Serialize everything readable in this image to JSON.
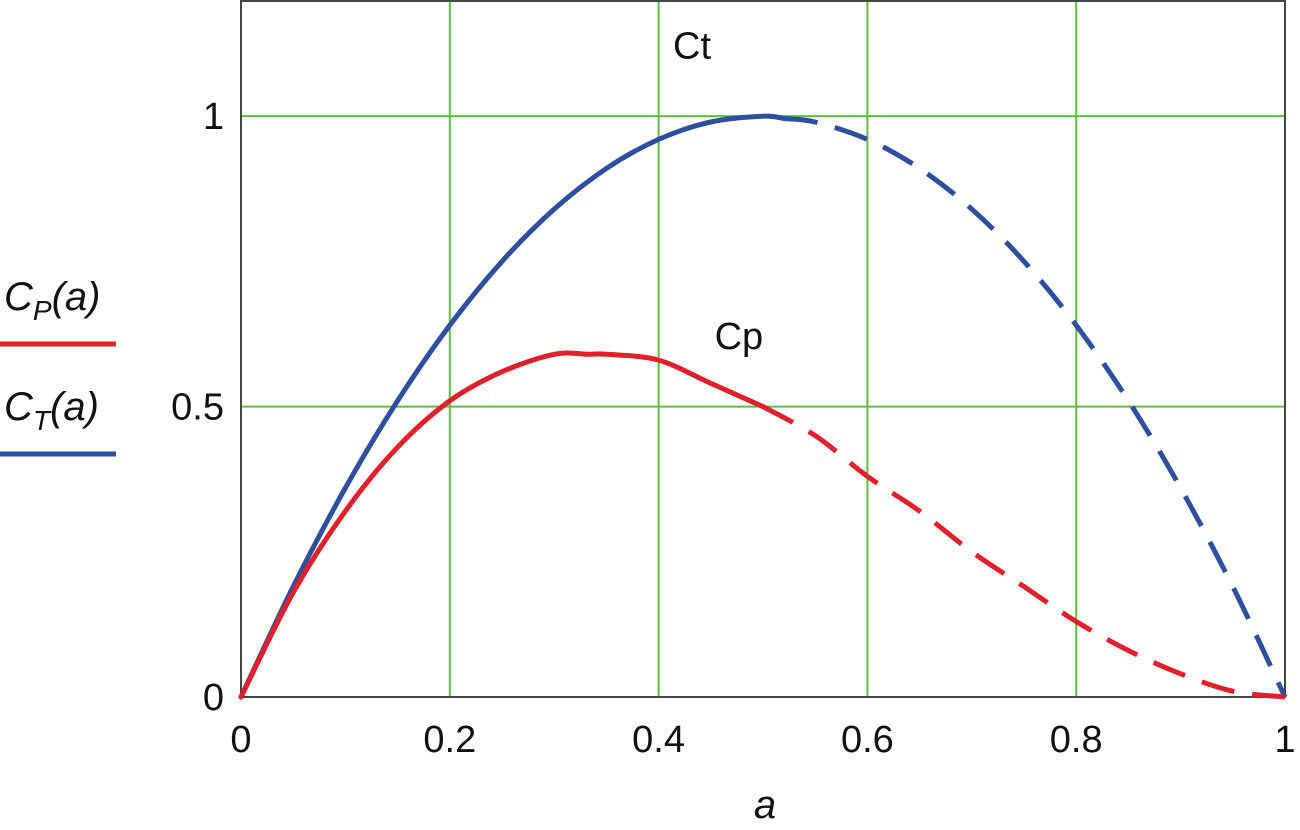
{
  "chart_data": {
    "type": "line",
    "title": "",
    "xlabel": "a",
    "ylabel": "",
    "xlim": [
      0,
      1
    ],
    "ylim": [
      0,
      1.2
    ],
    "grid": true,
    "grid_color": "#5cbf3a",
    "x_ticks": [
      {
        "value": 0,
        "label": "0"
      },
      {
        "value": 0.2,
        "label": "0.2"
      },
      {
        "value": 0.4,
        "label": "0.4"
      },
      {
        "value": 0.6,
        "label": "0.6"
      },
      {
        "value": 0.8,
        "label": "0.8"
      },
      {
        "value": 1,
        "label": "1"
      }
    ],
    "y_ticks": [
      {
        "value": 0,
        "label": "0"
      },
      {
        "value": 0.5,
        "label": "0.5"
      },
      {
        "value": 1,
        "label": "1"
      }
    ],
    "x_grid_values": [
      0.2,
      0.4,
      0.6,
      0.8
    ],
    "y_grid_values": [
      0.5,
      1.0
    ],
    "legend_placement": "left",
    "legend": [
      {
        "main": "C",
        "sub": "P",
        "arg": "(a)",
        "color": "#e0202a"
      },
      {
        "main": "C",
        "sub": "T",
        "arg": "(a)",
        "color": "#2e4f9e"
      }
    ],
    "series": [
      {
        "color": "#2e4f9e",
        "solid_until": 0.52,
        "x": [
          0,
          0.05,
          0.1,
          0.15,
          0.2,
          0.25,
          0.3,
          0.35,
          0.4,
          0.45,
          0.5,
          0.55,
          0.6,
          0.65,
          0.7,
          0.75,
          0.8,
          0.85,
          0.9,
          0.95,
          1.0
        ],
        "y": [
          0,
          0.19,
          0.36,
          0.51,
          0.64,
          0.75,
          0.84,
          0.91,
          0.96,
          0.99,
          1.0,
          0.99,
          0.96,
          0.91,
          0.84,
          0.75,
          0.64,
          0.51,
          0.36,
          0.19,
          0
        ]
      },
      {
        "color": "#e0202a",
        "solid_until": 0.5,
        "x": [
          0,
          0.05,
          0.1,
          0.15,
          0.2,
          0.25,
          0.3,
          0.333,
          0.35,
          0.4,
          0.45,
          0.5,
          0.55,
          0.6,
          0.65,
          0.7,
          0.75,
          0.8,
          0.85,
          0.9,
          0.95,
          1.0
        ],
        "y": [
          0,
          0.18,
          0.32,
          0.43,
          0.51,
          0.56,
          0.59,
          0.59,
          0.59,
          0.58,
          0.54,
          0.5,
          0.45,
          0.38,
          0.32,
          0.25,
          0.19,
          0.13,
          0.08,
          0.04,
          0.01,
          0
        ]
      }
    ],
    "annotations": [
      {
        "text": "Ct",
        "x": 0.5,
        "y": 1.12,
        "anchor": "end"
      },
      {
        "text": "Cp",
        "x": 0.55,
        "y": 0.62,
        "anchor": "end"
      }
    ]
  }
}
